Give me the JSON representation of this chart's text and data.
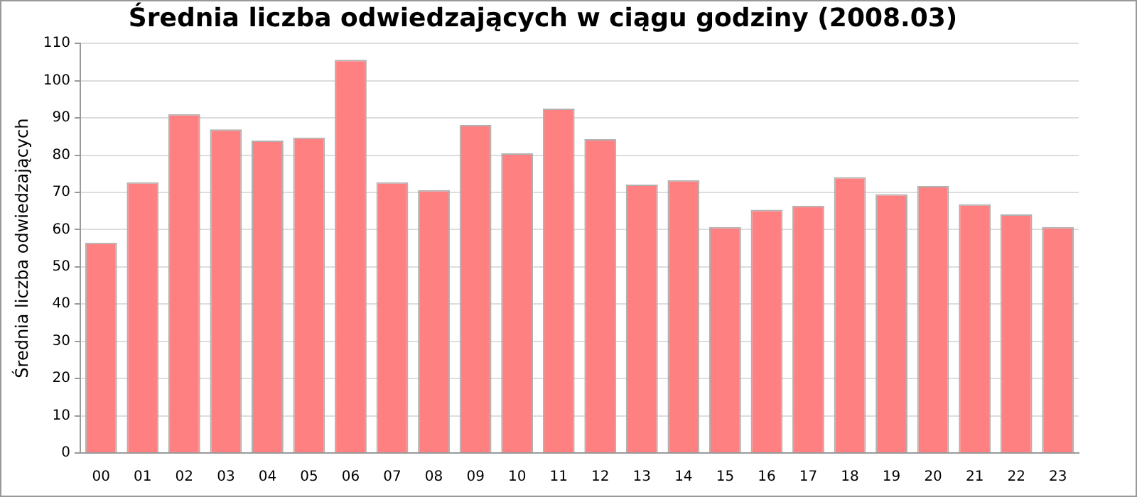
{
  "chart_data": {
    "type": "bar",
    "title": "Średnia liczba odwiedzających w ciągu godziny (2008.03)",
    "ylabel": "Średnia liczba odwiedzających",
    "categories": [
      "00",
      "01",
      "02",
      "03",
      "04",
      "05",
      "06",
      "07",
      "08",
      "09",
      "10",
      "11",
      "12",
      "13",
      "14",
      "15",
      "16",
      "17",
      "18",
      "19",
      "20",
      "21",
      "22",
      "23"
    ],
    "values": [
      56.5,
      72.7,
      91,
      86.9,
      83.9,
      84.7,
      105.6,
      72.7,
      70.6,
      88.1,
      80.5,
      92.5,
      84.3,
      72.1,
      73.3,
      60.7,
      65.3,
      66.4,
      74.1,
      69.5,
      71.7,
      66.8,
      64.1,
      60.7
    ],
    "color": "#ff8080",
    "ylim": [
      0,
      110
    ],
    "yticks": [
      0,
      10,
      20,
      30,
      40,
      50,
      60,
      70,
      80,
      90,
      100,
      110
    ],
    "grid": "y",
    "legend": false
  }
}
